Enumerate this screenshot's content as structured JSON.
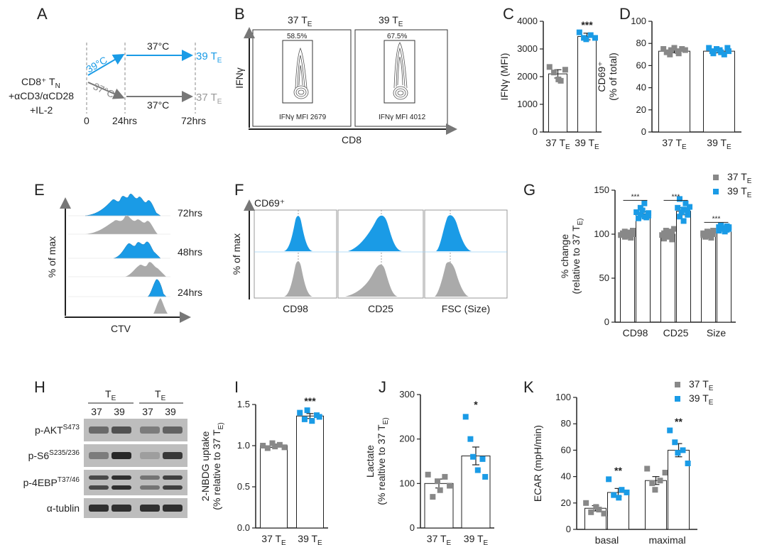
{
  "colors": {
    "e37": "#888888",
    "e39": "#1a9be6",
    "axis": "#222222",
    "hist37": "#aaaaaa"
  },
  "panels": {
    "A": {
      "letter": "A",
      "start_line1": "CD8⁺ T",
      "start_sub": "N",
      "start_line2": "+αCD3/αCD28",
      "start_line3": "+IL-2",
      "temp39": "39°C",
      "temp37": "37°C",
      "top_temp": "37°C",
      "bottom_temp": "37°C",
      "end39": "39 T",
      "end37": "37 T",
      "end_sub": "E",
      "t0": "0",
      "t24": "24hrs",
      "t72": "72hrs"
    },
    "B": {
      "letter": "B",
      "left_title": "37 T",
      "right_title": "39 T",
      "title_sub": "E",
      "gate_left": "58.5%",
      "gate_right": "67.5%",
      "mfi_left": "IFNγ MFI 2679",
      "mfi_right": "IFNγ MFI 4012",
      "ylabel": "IFNγ",
      "xlabel": "CD8"
    },
    "E": {
      "letter": "E",
      "ylabel": "% of max",
      "xlabel": "CTV",
      "times": [
        "72hrs",
        "48hrs",
        "24hrs"
      ]
    },
    "F": {
      "letter": "F",
      "title": "CD69⁺",
      "ylabel": "% of max",
      "markers": [
        "CD98",
        "CD25",
        "FSC (Size)"
      ]
    },
    "H": {
      "letter": "H",
      "group_label": "T",
      "group_sub": "E",
      "lanes": [
        "37",
        "39",
        "37",
        "39"
      ],
      "bands": [
        {
          "name": "p-AKT",
          "sup": "S473"
        },
        {
          "name": "p-S6",
          "sup": "S235/236"
        },
        {
          "name": "p-4EBP",
          "sup": "T37/46"
        },
        {
          "name": "α-tublin",
          "sup": ""
        }
      ],
      "intensity": [
        [
          0.55,
          0.7,
          0.45,
          0.6
        ],
        [
          0.45,
          0.95,
          0.25,
          0.85
        ],
        [
          0.75,
          0.9,
          0.5,
          0.8
        ],
        [
          0.9,
          0.9,
          0.9,
          0.9
        ]
      ]
    }
  },
  "chart_data": [
    {
      "id": "C",
      "letter": "C",
      "type": "bar",
      "categories": [
        "37 T|E",
        "39 T|E"
      ],
      "values": [
        2100,
        3450
      ],
      "errors": [
        150,
        120
      ],
      "points": [
        [
          2350,
          2150,
          1900,
          1850,
          2250
        ],
        [
          3600,
          3400,
          3350,
          3500,
          3400
        ]
      ],
      "ylabel": "IFNγ (MFI)",
      "ylim": [
        0,
        4000
      ],
      "yticks": [
        0,
        1000,
        2000,
        3000,
        4000
      ],
      "annotations": [
        {
          "category": 1,
          "text": "***",
          "y": 3750
        }
      ],
      "marker": "square"
    },
    {
      "id": "D",
      "letter": "D",
      "type": "bar",
      "categories": [
        "37 T|E",
        "39 T|E"
      ],
      "values": [
        73,
        73
      ],
      "errors": [
        1.5,
        1.5
      ],
      "points": [
        [
          75,
          72,
          70,
          74,
          76,
          73,
          71,
          75,
          74
        ],
        [
          76,
          73,
          71,
          75,
          74,
          72,
          70,
          76,
          73
        ]
      ],
      "ylabel": "CD69⁺",
      "ylabel2": "(% of total)",
      "ylim": [
        0,
        100
      ],
      "yticks": [
        0,
        20,
        40,
        60,
        80,
        100
      ],
      "annotations": [],
      "marker": "square"
    },
    {
      "id": "G",
      "letter": "G",
      "type": "bar",
      "categories": [
        "CD98",
        "CD25",
        "Size"
      ],
      "series": [
        {
          "name": "37 T|E",
          "values": [
            100,
            100,
            100
          ],
          "errors": [
            2,
            2.5,
            2
          ],
          "points": [
            [
              99,
              101,
              97,
              103,
              100,
              98,
              102,
              96,
              100,
              104
            ],
            [
              99,
              101,
              95,
              104,
              100,
              97,
              103,
              94,
              100,
              106
            ],
            [
              99,
              101,
              97,
              103,
              100,
              98,
              102,
              96,
              100,
              104
            ]
          ]
        },
        {
          "name": "39 T|E",
          "values": [
            123,
            126,
            107
          ],
          "errors": [
            2.5,
            4,
            1.5
          ],
          "points": [
            [
              125,
              118,
              130,
              122,
              127,
              120,
              135,
              119,
              124,
              121
            ],
            [
              130,
              120,
              140,
              125,
              128,
              115,
              135,
              122,
              127,
              131
            ],
            [
              108,
              104,
              110,
              106,
              107,
              103,
              109,
              105,
              108,
              106
            ]
          ]
        }
      ],
      "ylabel": "% change",
      "ylabel2": "(relative to 37 T|E)",
      "ylim": [
        0,
        150
      ],
      "yticks": [
        0,
        50,
        100,
        150
      ],
      "annotations": [
        {
          "category": 0,
          "text": "***",
          "y": 140
        },
        {
          "category": 1,
          "text": "***",
          "y": 140
        },
        {
          "category": 2,
          "text": "***",
          "y": 115
        }
      ],
      "legend": "top-right",
      "marker": "square"
    },
    {
      "id": "I",
      "letter": "I",
      "type": "bar",
      "categories": [
        "37 T|E",
        "39 T|E"
      ],
      "values": [
        1.0,
        1.36
      ],
      "errors": [
        0.02,
        0.03
      ],
      "points": [
        [
          1.0,
          0.97,
          1.03,
          0.99,
          1.01,
          0.98
        ],
        [
          1.4,
          1.32,
          1.43,
          1.3,
          1.37,
          1.35
        ]
      ],
      "ylabel": "2-NBDG uptake",
      "ylabel2": "(% relative to 37 T|E)",
      "ylim": [
        0,
        1.5
      ],
      "yticks": [
        0.0,
        0.5,
        1.0,
        1.5
      ],
      "tick_decimals": 1,
      "annotations": [
        {
          "category": 1,
          "text": "***",
          "y": 1.5
        }
      ],
      "marker": "square"
    },
    {
      "id": "J",
      "letter": "J",
      "type": "bar",
      "categories": [
        "37 T|E",
        "39 T|E"
      ],
      "values": [
        100,
        162
      ],
      "errors": [
        10,
        20
      ],
      "points": [
        [
          120,
          70,
          105,
          85,
          115,
          95
        ],
        [
          250,
          200,
          160,
          130,
          155,
          115
        ]
      ],
      "ylabel": "Lactate",
      "ylabel2": "(% realtive to  37 T|E)",
      "ylim": [
        0,
        300
      ],
      "yticks": [
        0,
        100,
        200,
        300
      ],
      "annotations": [
        {
          "category": 1,
          "text": "*",
          "y": 270
        }
      ],
      "marker": "square"
    },
    {
      "id": "K",
      "letter": "K",
      "type": "bar",
      "categories": [
        "basal",
        "maximal"
      ],
      "series": [
        {
          "name": "37 T|E",
          "values": [
            16,
            37
          ],
          "errors": [
            2,
            3
          ],
          "points": [
            [
              20,
              13,
              17,
              15,
              12
            ],
            [
              46,
              35,
              30,
              37,
              43
            ]
          ]
        },
        {
          "name": "39 T|E",
          "values": [
            28,
            60
          ],
          "errors": [
            3,
            5
          ],
          "points": [
            [
              38,
              26,
              24,
              30,
              28
            ],
            [
              75,
              66,
              58,
              60,
              50
            ]
          ]
        }
      ],
      "ylabel": "ECAR (mpH/min)",
      "ylim": [
        0,
        100
      ],
      "yticks": [
        0,
        20,
        40,
        60,
        80,
        100
      ],
      "annotations": [
        {
          "category": 0,
          "text": "**",
          "y": 42
        },
        {
          "category": 1,
          "text": "**",
          "y": 79
        }
      ],
      "legend": "top-right",
      "marker": "square"
    }
  ]
}
